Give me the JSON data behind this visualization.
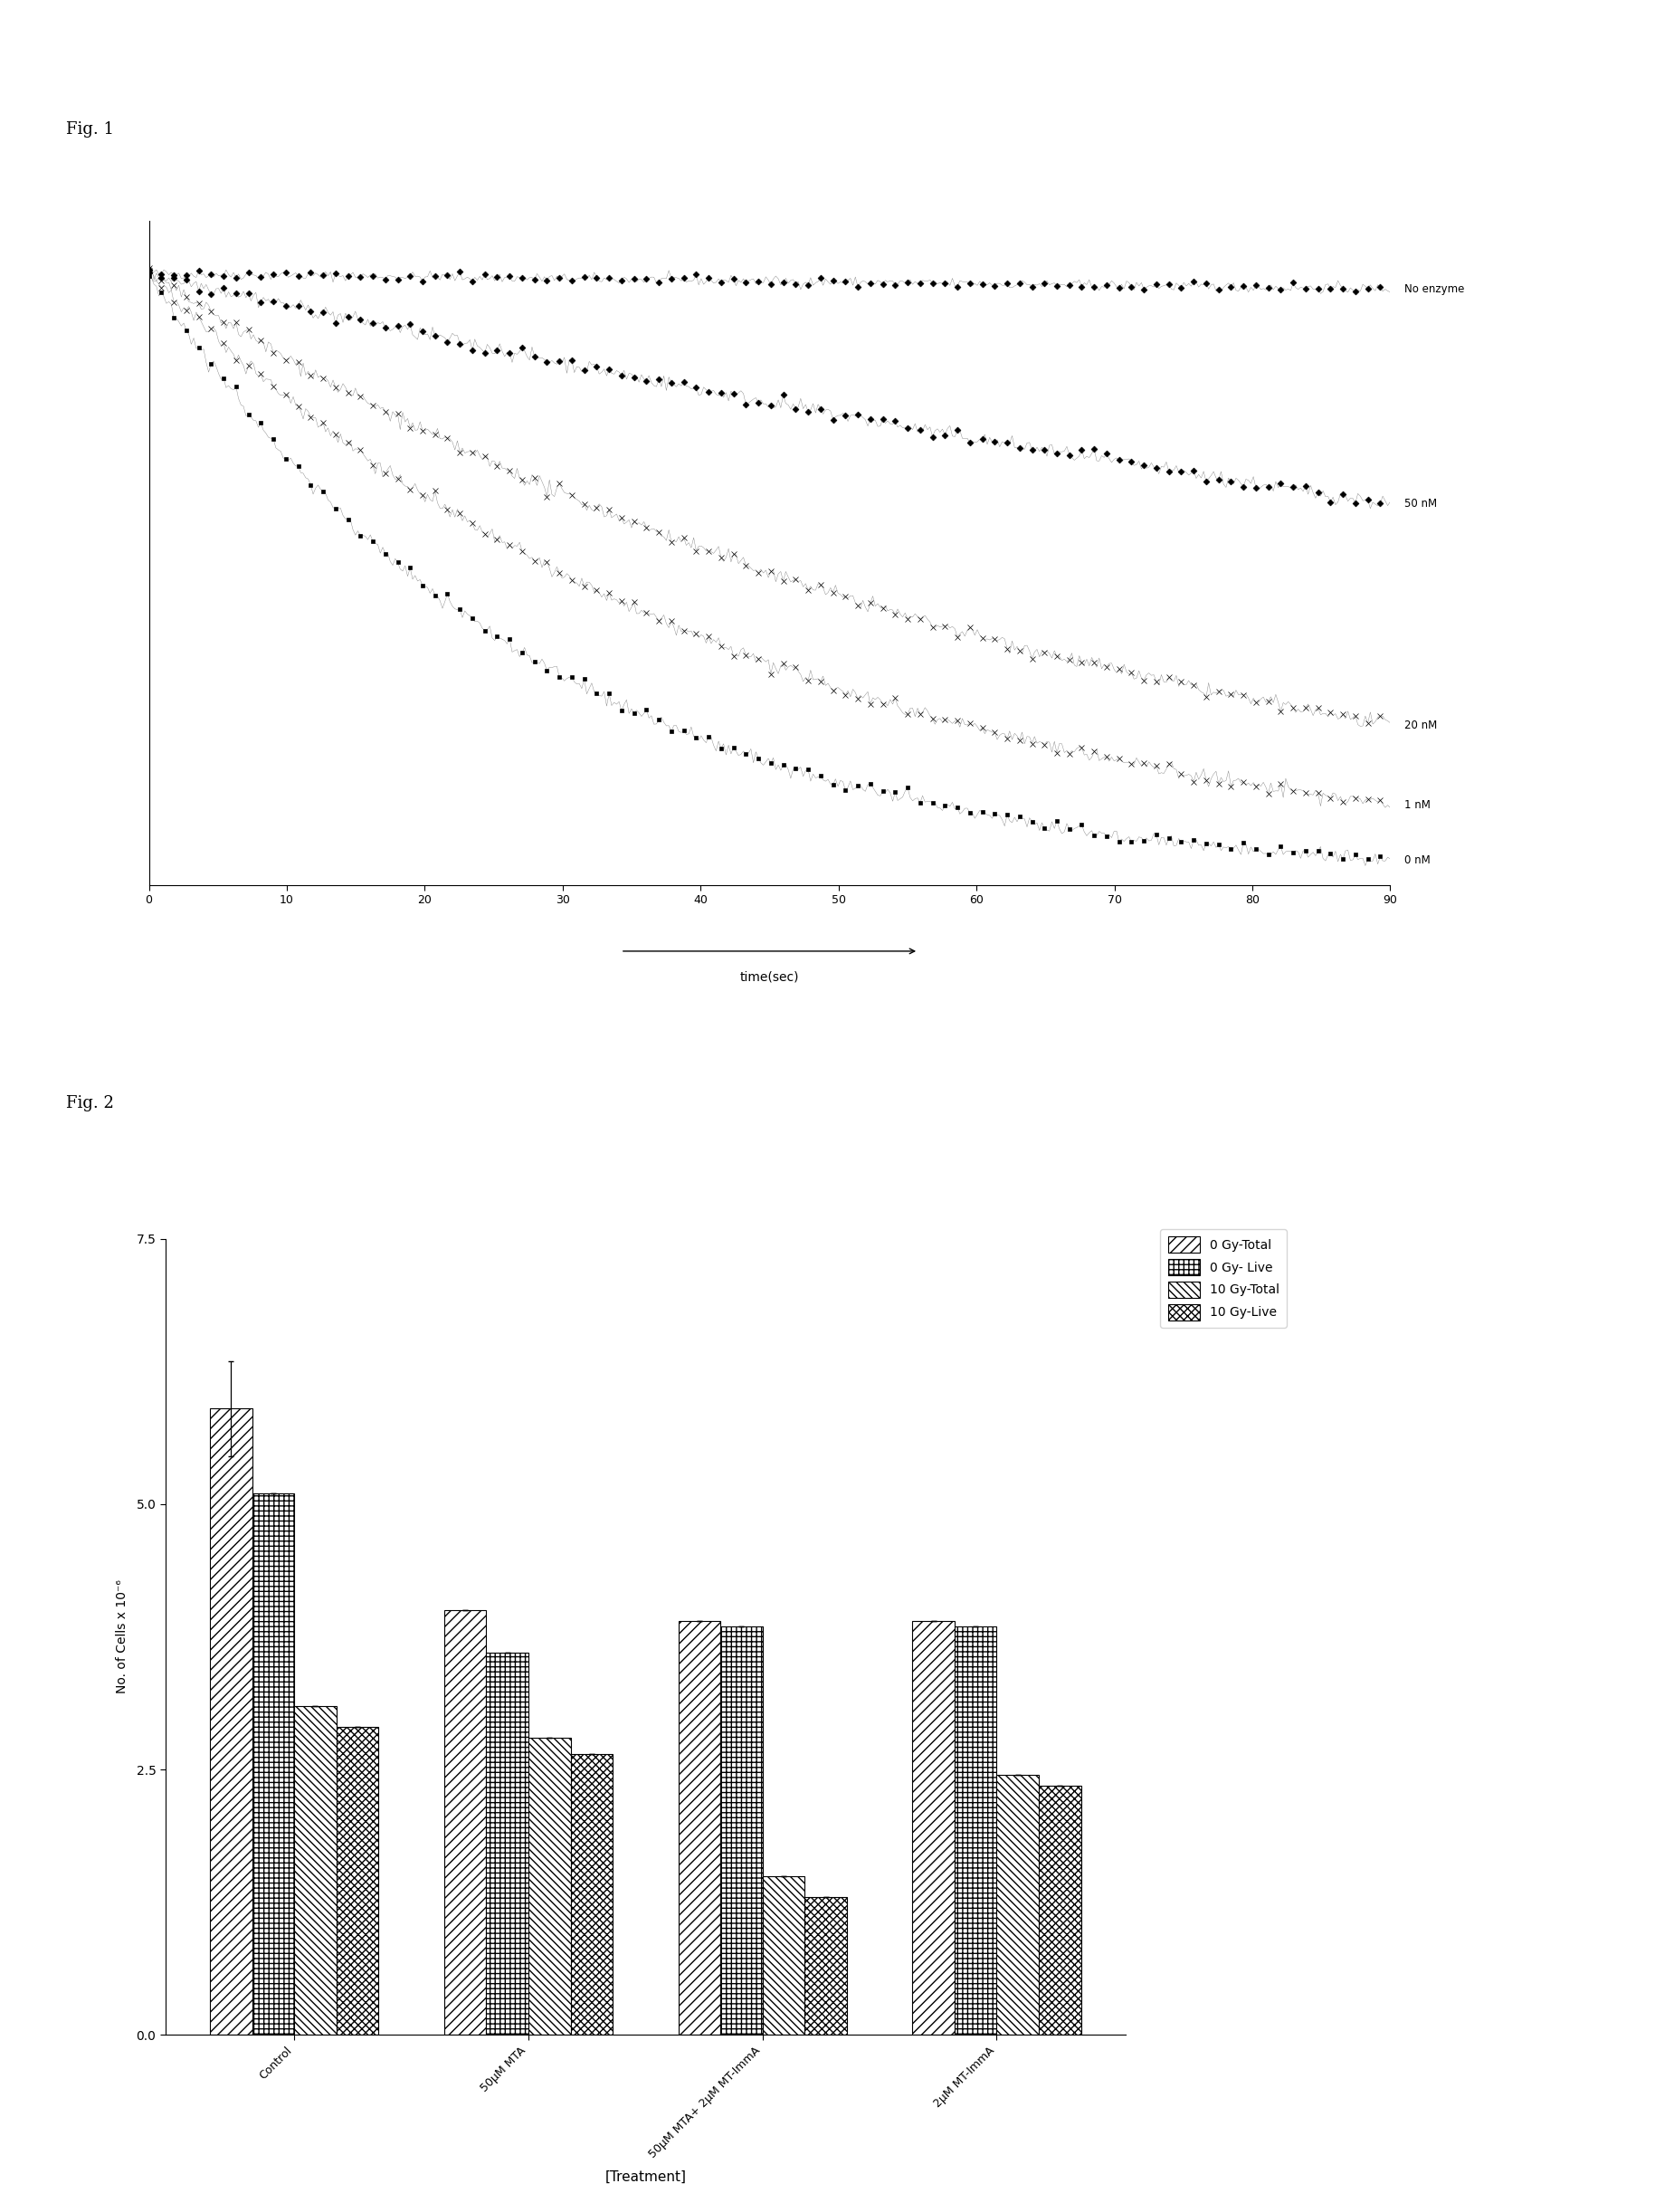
{
  "fig1": {
    "title": "Fig. 1",
    "xlabel": "time(sec)",
    "x_ticks": [
      0,
      10,
      20,
      30,
      40,
      50,
      60,
      70,
      80,
      90
    ],
    "curves": [
      {
        "label": "No enzyme",
        "y_end": 0.97,
        "noise_amp": 0.004,
        "marker": "D",
        "markersize": 3.5,
        "every_n": 5
      },
      {
        "label": "50 nM",
        "y_end": 0.62,
        "noise_amp": 0.006,
        "marker": "D",
        "markersize": 3.5,
        "every_n": 5
      },
      {
        "label": "20 nM",
        "y_end": 0.26,
        "noise_amp": 0.006,
        "marker": "x",
        "markersize": 4,
        "every_n": 5
      },
      {
        "label": "1 nM",
        "y_end": 0.13,
        "noise_amp": 0.006,
        "marker": "x",
        "markersize": 4,
        "every_n": 5
      },
      {
        "label": "0 nM",
        "y_end": 0.04,
        "noise_amp": 0.006,
        "marker": "s",
        "markersize": 3,
        "every_n": 5
      }
    ],
    "y_start": 0.995,
    "t_max": 90,
    "n_points": 500
  },
  "fig2": {
    "title": "Fig. 2",
    "xlabel": "[Treatment]",
    "ylabel": "No. of Cells x 10⁻⁶",
    "y_ticks": [
      0.0,
      2.5,
      5.0,
      7.5
    ],
    "categories": [
      "Control",
      "50μM MTA",
      "50μM MTA+ 2μM MT-ImmA",
      "2μM MT-ImmA"
    ],
    "legend_labels": [
      "0 Gy-Total",
      "0 Gy- Live",
      "10 Gy-Total",
      "10 Gy-Live"
    ],
    "bar_data_keys": [
      "0 Gy-Total",
      "0 Gy- Live",
      "10 Gy-Total",
      "10 Gy-Live"
    ],
    "bar_data": {
      "0 Gy-Total": [
        5.9,
        4.0,
        3.9,
        3.9
      ],
      "0 Gy- Live": [
        5.1,
        3.6,
        3.85,
        3.85
      ],
      "10 Gy-Total": [
        3.1,
        2.8,
        1.5,
        2.45
      ],
      "10 Gy-Live": [
        2.9,
        2.65,
        1.3,
        2.35
      ]
    },
    "bar_errors": {
      "0 Gy-Total": [
        0.45,
        0.0,
        0.0,
        0.0
      ],
      "0 Gy- Live": [
        0.0,
        0.0,
        0.0,
        0.0
      ],
      "10 Gy-Total": [
        0.0,
        0.0,
        0.0,
        0.0
      ],
      "10 Gy-Live": [
        0.0,
        0.0,
        0.0,
        0.0
      ]
    },
    "hatch_patterns": [
      "///",
      "+++",
      "\\\\\\\\",
      "xxxx"
    ],
    "bar_width": 0.18
  }
}
